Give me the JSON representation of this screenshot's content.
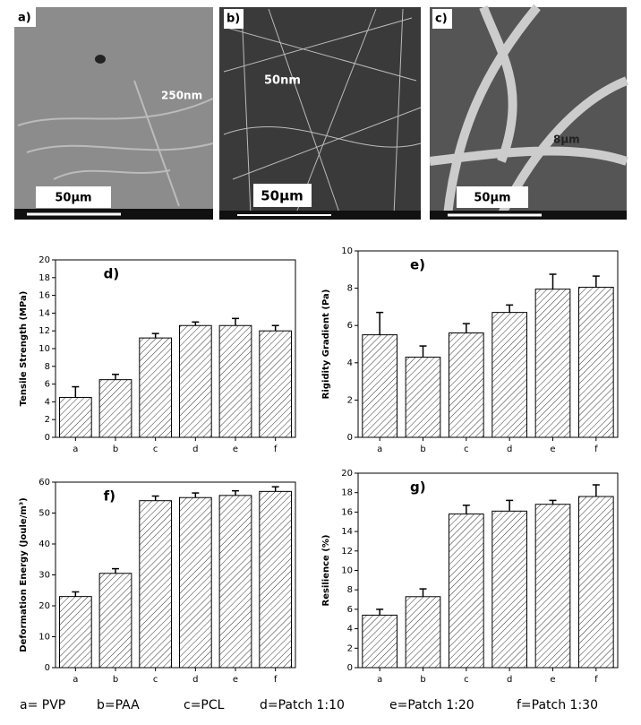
{
  "images": [
    {
      "label": "a)",
      "annotation": "250nm",
      "scale": "50µm"
    },
    {
      "label": "b)",
      "annotation": "50nm",
      "scale": "50µm"
    },
    {
      "label": "c)",
      "annotation": "8µm",
      "scale": "50µm"
    }
  ],
  "chart_data": [
    {
      "type": "bar",
      "title": "d)",
      "ylabel": "Tensile Strength (MPa)",
      "categories": [
        "a",
        "b",
        "c",
        "d",
        "e",
        "f"
      ],
      "values": [
        4.5,
        6.5,
        11.2,
        12.6,
        12.6,
        12.0
      ],
      "errors": [
        1.2,
        0.6,
        0.5,
        0.4,
        0.8,
        0.6
      ],
      "ylim": [
        0,
        20
      ],
      "yticks": [
        0,
        2,
        4,
        6,
        8,
        10,
        12,
        14,
        16,
        18,
        20
      ]
    },
    {
      "type": "bar",
      "title": "e)",
      "ylabel": "Rigidity Gradient (Pa)",
      "categories": [
        "a",
        "b",
        "c",
        "d",
        "e",
        "f"
      ],
      "values": [
        5.5,
        4.3,
        5.6,
        6.7,
        7.95,
        8.05
      ],
      "errors": [
        1.2,
        0.6,
        0.5,
        0.4,
        0.8,
        0.6
      ],
      "ylim": [
        0,
        10
      ],
      "yticks": [
        0,
        2,
        4,
        6,
        8,
        10
      ]
    },
    {
      "type": "bar",
      "title": "f)",
      "ylabel": "Deformation Energy (Joule/m³)",
      "categories": [
        "a",
        "b",
        "c",
        "d",
        "e",
        "f"
      ],
      "values": [
        23,
        30.5,
        54,
        55,
        55.7,
        57
      ],
      "errors": [
        1.5,
        1.5,
        1.5,
        1.5,
        1.5,
        1.5
      ],
      "ylim": [
        0,
        60
      ],
      "yticks": [
        0,
        10,
        20,
        30,
        40,
        50,
        60
      ]
    },
    {
      "type": "bar",
      "title": "g)",
      "ylabel": "Resilience (%)",
      "categories": [
        "a",
        "b",
        "c",
        "d",
        "e",
        "f"
      ],
      "values": [
        5.4,
        7.3,
        15.8,
        16.1,
        16.8,
        17.6
      ],
      "errors": [
        0.6,
        0.8,
        0.9,
        1.1,
        0.4,
        1.2
      ],
      "ylim": [
        0,
        20
      ],
      "yticks": [
        0,
        2,
        4,
        6,
        8,
        10,
        12,
        14,
        16,
        18,
        20
      ]
    }
  ],
  "legend": [
    "a= PVP",
    "b=PAA",
    "c=PCL",
    "d=Patch 1:10",
    "e=Patch 1:20",
    "f=Patch 1:30"
  ]
}
